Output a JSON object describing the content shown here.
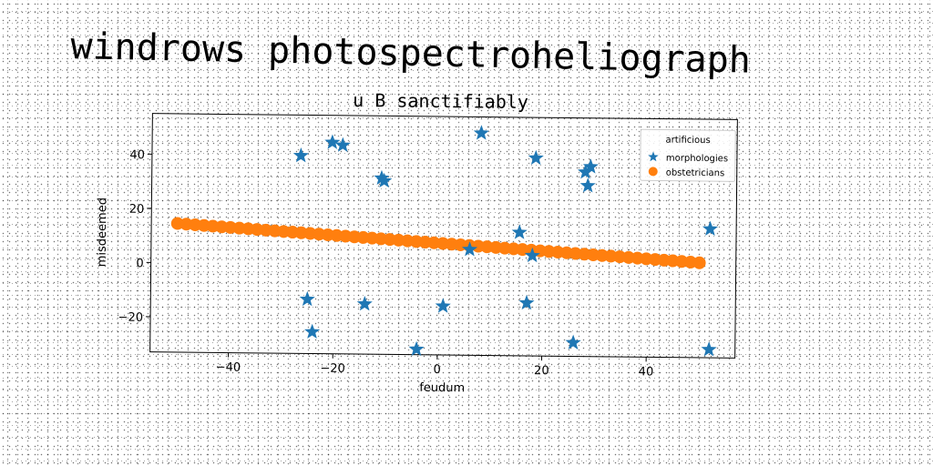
{
  "header": {
    "title": "windrows photospectroheliograph"
  },
  "chart_data": {
    "type": "scatter",
    "title": "u B sanctifiably",
    "xlabel": "feudum",
    "ylabel": "misdeemed",
    "xlim": [
      -55,
      57
    ],
    "ylim": [
      -33,
      55
    ],
    "xticks": [
      -40,
      -20,
      0,
      20,
      40
    ],
    "yticks": [
      -20,
      0,
      20,
      40
    ],
    "legend": {
      "title": "artificious",
      "placement": "upper-right"
    },
    "series": [
      {
        "name": "morphologies",
        "marker": "star",
        "color": "#1f77b4",
        "points": [
          [
            -26.5,
            40
          ],
          [
            -20.5,
            45
          ],
          [
            -18.5,
            44
          ],
          [
            -11,
            32
          ],
          [
            -10.5,
            31
          ],
          [
            8,
            49
          ],
          [
            18.5,
            40
          ],
          [
            28,
            35
          ],
          [
            29,
            37
          ],
          [
            28.5,
            30
          ],
          [
            52,
            14.5
          ],
          [
            15.5,
            12.5
          ],
          [
            6,
            6
          ],
          [
            18,
            4
          ],
          [
            -25,
            -13
          ],
          [
            -24,
            -25
          ],
          [
            -14,
            -14.5
          ],
          [
            1,
            -15
          ],
          [
            17,
            -13.5
          ],
          [
            -4,
            -31
          ],
          [
            26,
            -28
          ],
          [
            52,
            -30
          ]
        ]
      },
      {
        "name": "obstetricians",
        "marker": "circle",
        "color": "#ff7f0e",
        "x_start": -50,
        "x_end": 50,
        "count": 60,
        "y_start": 14.5,
        "y_end": 2
      }
    ]
  }
}
